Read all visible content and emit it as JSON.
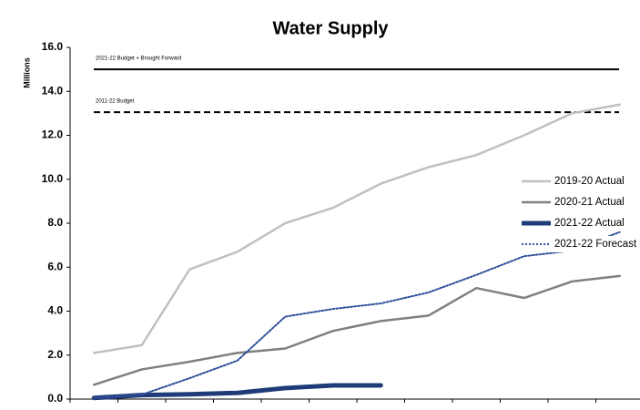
{
  "chart_data": {
    "type": "line",
    "title": "Water Supply",
    "y_label": "Millions",
    "categories": [
      null,
      null,
      null,
      null,
      null,
      null,
      null,
      null,
      null,
      null,
      null,
      null
    ],
    "series": [
      {
        "name": "2019-20 Actual",
        "color": "#c0c0c0",
        "width": 2.5,
        "dash": "none",
        "values": [
          2.1,
          2.45,
          5.9,
          6.7,
          8.0,
          8.7,
          9.8,
          10.55,
          11.1,
          12.0,
          13.0,
          13.4
        ]
      },
      {
        "name": "2020-21 Actual",
        "color": "#808080",
        "width": 2.5,
        "dash": "none",
        "values": [
          0.65,
          1.35,
          1.7,
          2.1,
          2.3,
          3.1,
          3.55,
          3.8,
          5.05,
          4.6,
          5.35,
          5.6
        ]
      },
      {
        "name": "2021-22 Actual",
        "color": "#1f3c78",
        "width": 5,
        "dash": "none",
        "values": [
          0.05,
          0.18,
          0.22,
          0.28,
          0.5,
          0.62,
          0.62,
          null,
          null,
          null,
          null,
          null
        ]
      },
      {
        "name": "2021-22 Forecast",
        "color": "#2f4f9a",
        "width": 2,
        "dash": "2,2",
        "values": [
          0.05,
          0.2,
          0.95,
          1.75,
          3.75,
          4.1,
          4.35,
          4.85,
          5.65,
          6.5,
          6.75,
          7.6
        ]
      }
    ],
    "reference_lines": [
      {
        "label": "2021-22 Budget + Brought Forward",
        "value": 15.0,
        "color": "#000000",
        "dash": "none"
      },
      {
        "label": "2011-22 Budget",
        "value": 13.05,
        "color": "#000000",
        "dash": "7,4"
      }
    ],
    "ylim": [
      0,
      16
    ],
    "yticks": [
      {
        "value": 0,
        "label": "0.0"
      },
      {
        "value": 2,
        "label": "2.0"
      },
      {
        "value": 4,
        "label": "4.0"
      },
      {
        "value": 6,
        "label": "6.0"
      },
      {
        "value": 8,
        "label": "8.0"
      },
      {
        "value": 10,
        "label": "10.0"
      },
      {
        "value": 12,
        "label": "12.0"
      },
      {
        "value": 14,
        "label": "14.0"
      },
      {
        "value": 16,
        "label": "16.0"
      }
    ],
    "grid": false,
    "legend": "right"
  }
}
